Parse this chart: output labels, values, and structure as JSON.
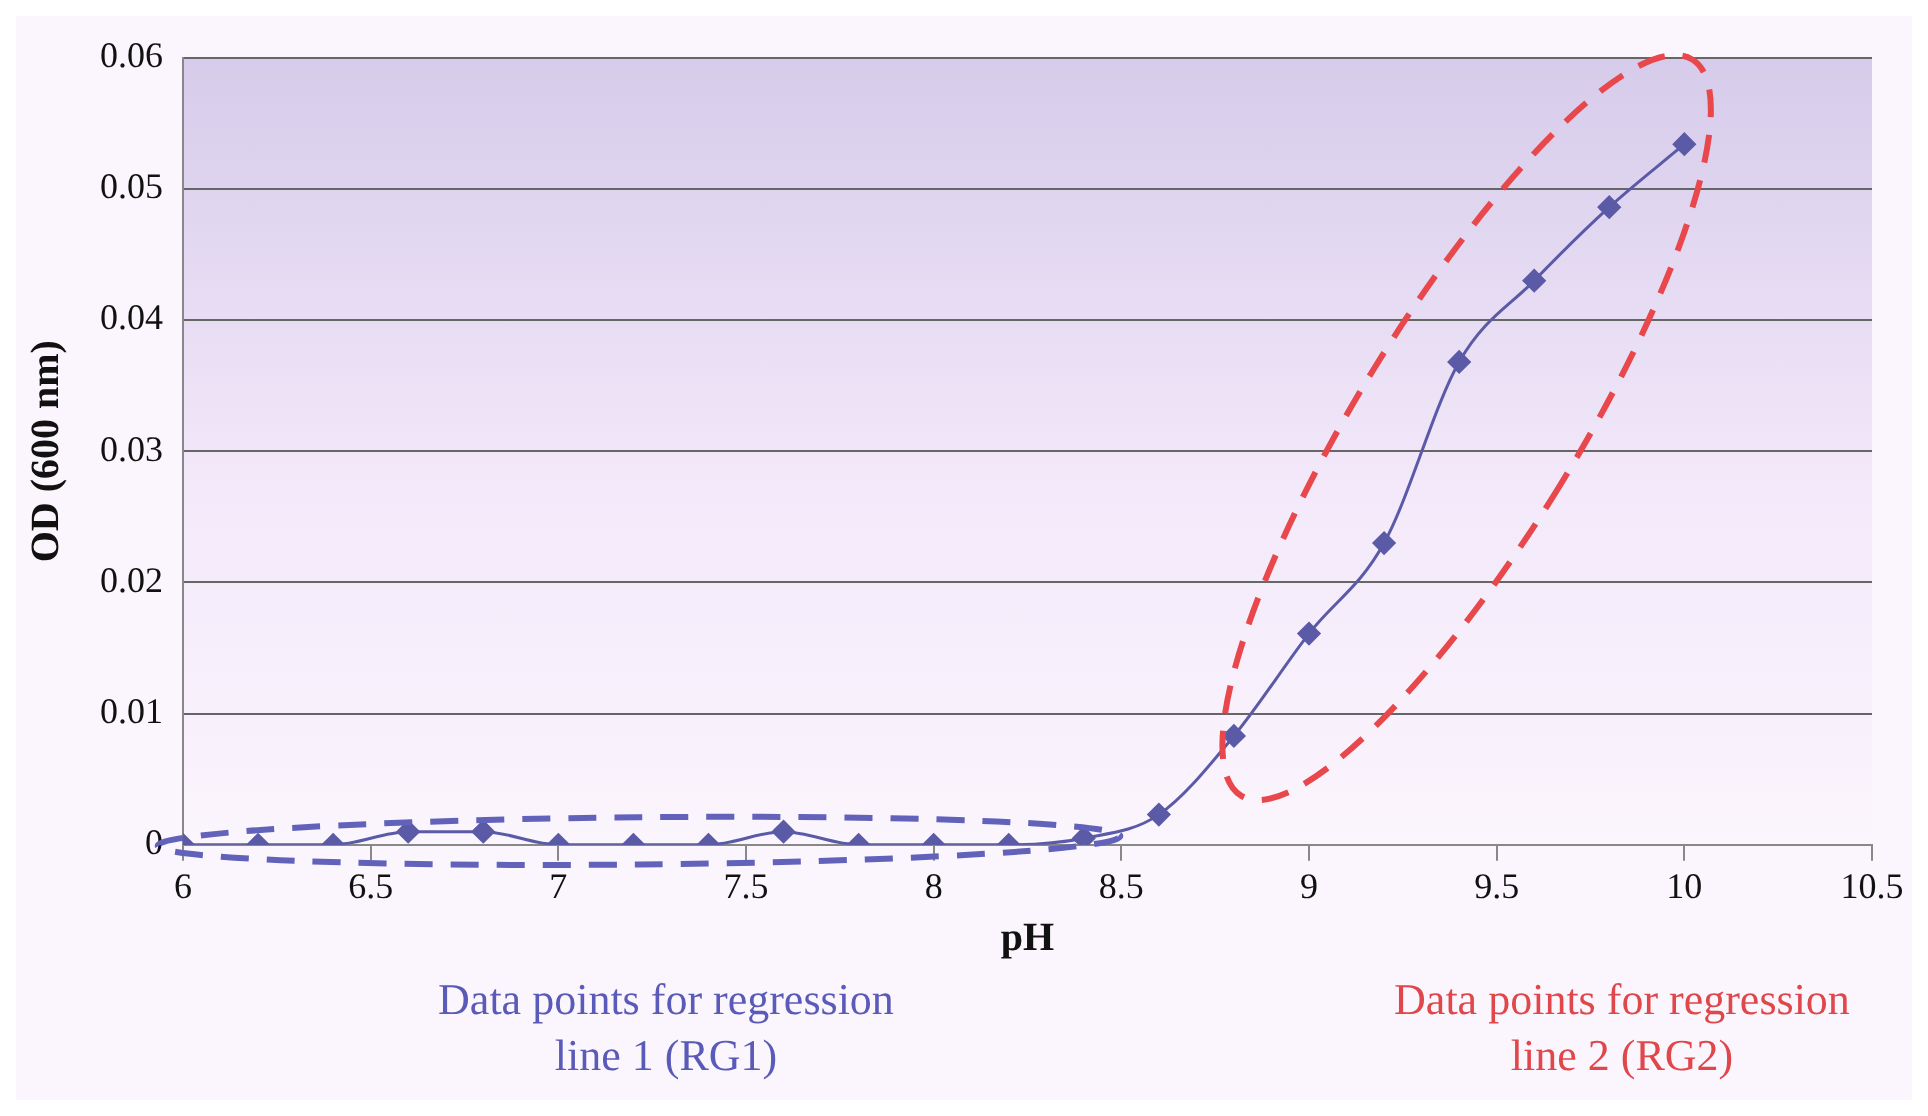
{
  "chart_data": {
    "type": "line",
    "xlabel": "pH",
    "ylabel": "OD (600 nm)",
    "x": [
      6,
      6.2,
      6.4,
      6.6,
      6.8,
      7,
      7.2,
      7.4,
      7.6,
      7.8,
      8,
      8.2,
      8.4,
      8.6,
      8.8,
      9,
      9.2,
      9.4,
      9.6,
      9.8,
      10
    ],
    "series": [
      {
        "color": "#5a5aa6",
        "values": [
          0,
          0,
          0,
          0.001,
          0.001,
          0,
          0,
          0,
          0.001,
          0,
          0,
          0,
          0.0005,
          0.0023,
          0.0083,
          0.0161,
          0.023,
          0.0368,
          0.043,
          0.0486,
          0.0534
        ]
      }
    ],
    "xlim": [
      6,
      10.5
    ],
    "xticks": [
      6,
      6.5,
      7,
      7.5,
      8,
      8.5,
      9,
      9.5,
      10,
      10.5
    ],
    "ylim": [
      0,
      0.06
    ],
    "yticks": [
      0,
      0.01,
      0.02,
      0.03,
      0.04,
      0.05,
      0.06
    ],
    "grid": "y",
    "marker": "diamond",
    "line_style": "solid",
    "legend": false,
    "annotations": [
      "Data points for regression line 1 (RG1)",
      "Data points for regression line 2 (RG2)"
    ]
  }
}
